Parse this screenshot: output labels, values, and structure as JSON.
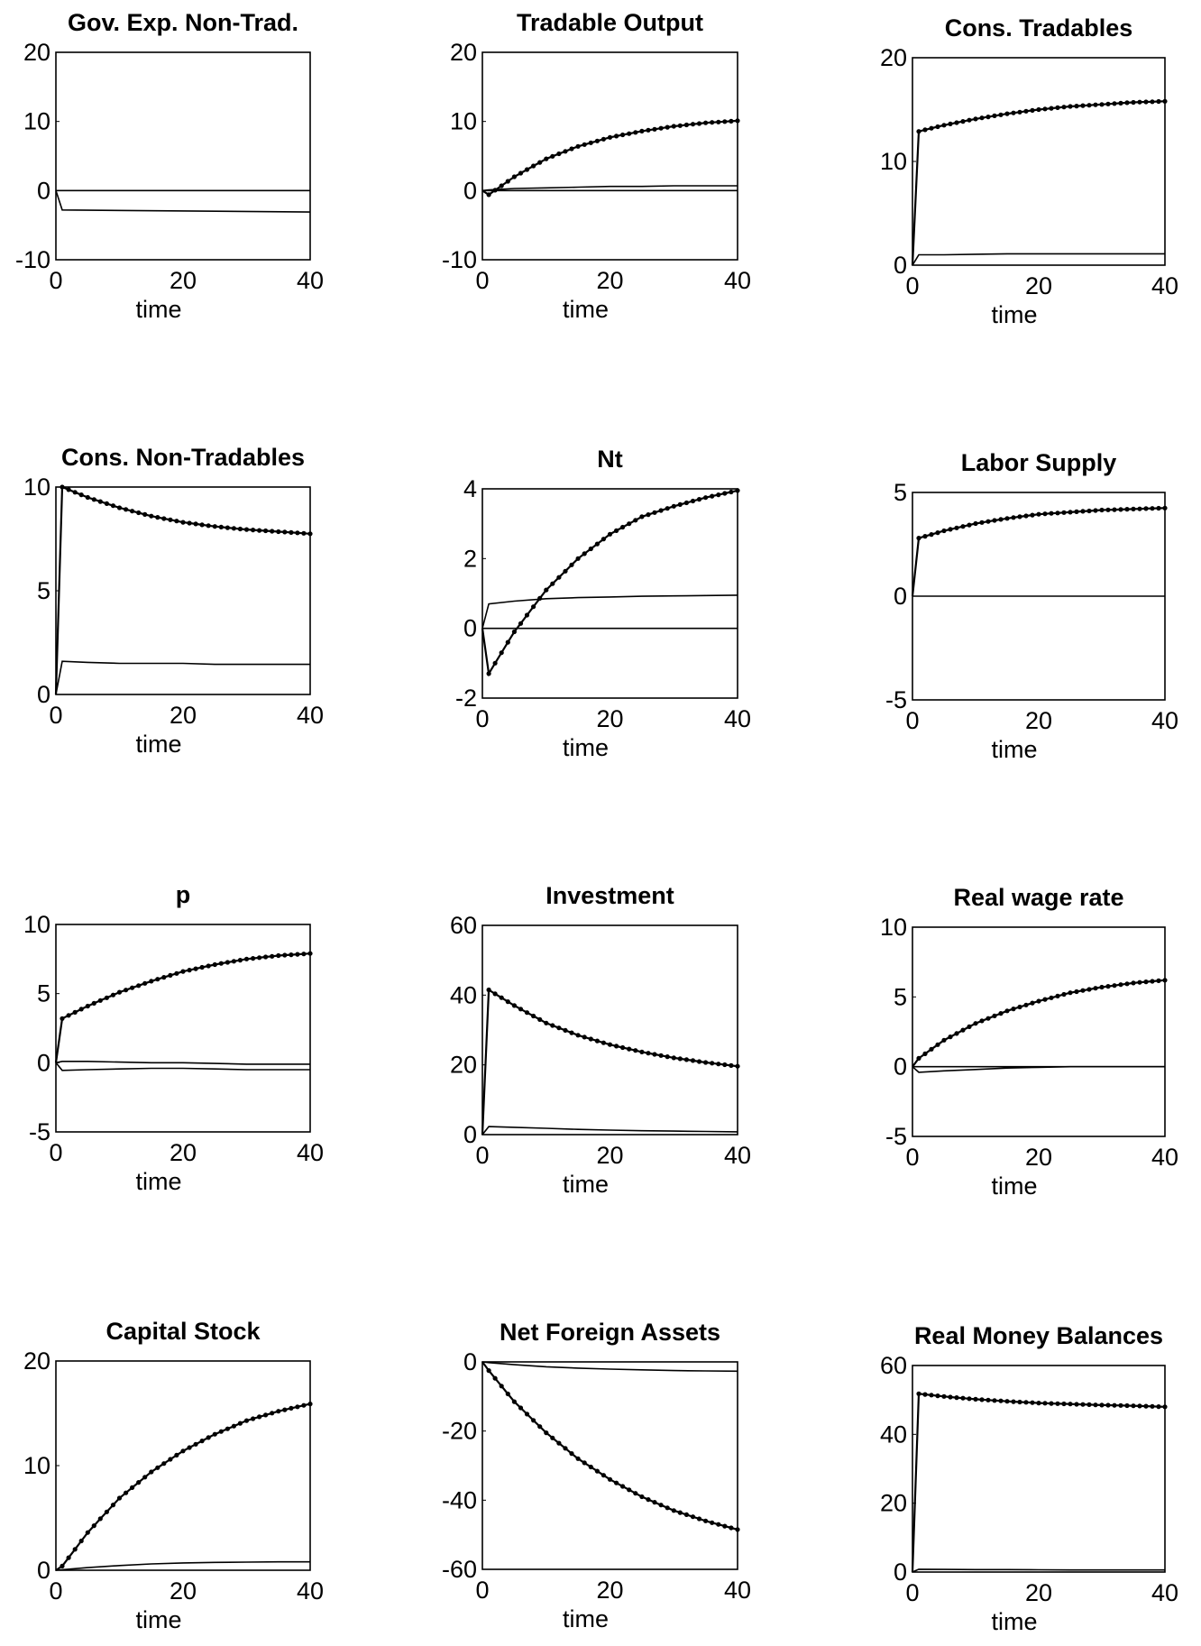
{
  "chart_data": [
    {
      "type": "line",
      "title": "Gov. Exp. Non-Trad.",
      "xlabel": "time",
      "ylim": [
        -10,
        20
      ],
      "xlim": [
        0,
        40
      ],
      "xticks": [
        "0",
        "20",
        "40"
      ],
      "yticks": [
        "-10",
        "0",
        "10",
        "20"
      ],
      "ytick_values": [
        -10,
        0,
        10,
        20
      ],
      "x": [
        0,
        1,
        40
      ],
      "series": [
        {
          "values": [
            0,
            0,
            0
          ]
        },
        {
          "values": [
            0,
            -2.8,
            -3.1
          ]
        }
      ]
    },
    {
      "type": "line",
      "title": "Tradable Output",
      "xlabel": "time",
      "ylim": [
        -10,
        20
      ],
      "xlim": [
        0,
        40
      ],
      "xticks": [
        "0",
        "20",
        "40"
      ],
      "yticks": [
        "-10",
        "0",
        "10",
        "20"
      ],
      "ytick_values": [
        -10,
        0,
        10,
        20
      ],
      "x": [
        0,
        1,
        5,
        10,
        15,
        20,
        25,
        30,
        35,
        40
      ],
      "series": [
        {
          "values": [
            0,
            -0.6,
            2.0,
            4.6,
            6.4,
            7.7,
            8.6,
            9.3,
            9.8,
            10.1
          ],
          "markers": true
        },
        {
          "values": [
            0,
            0.1,
            0.3,
            0.4,
            0.5,
            0.6,
            0.6,
            0.7,
            0.7,
            0.7
          ]
        },
        {
          "values": [
            0,
            0,
            0,
            0,
            0,
            0,
            0,
            0,
            0,
            0
          ]
        }
      ]
    },
    {
      "type": "line",
      "title": "Cons. Tradables",
      "xlabel": "time",
      "ylim": [
        0,
        20
      ],
      "xlim": [
        0,
        40
      ],
      "xticks": [
        "0",
        "20",
        "40"
      ],
      "yticks": [
        "0",
        "10",
        "20"
      ],
      "ytick_values": [
        0,
        10,
        20
      ],
      "x": [
        0,
        1,
        5,
        10,
        15,
        20,
        25,
        30,
        35,
        40
      ],
      "series": [
        {
          "values": [
            0,
            12.9,
            13.5,
            14.1,
            14.6,
            15.0,
            15.3,
            15.5,
            15.7,
            15.8
          ],
          "markers": true
        },
        {
          "values": [
            0,
            1.0,
            1.0,
            1.05,
            1.1,
            1.1,
            1.1,
            1.1,
            1.1,
            1.1
          ]
        }
      ]
    },
    {
      "type": "line",
      "title": "Cons. Non-Tradables",
      "xlabel": "time",
      "ylim": [
        0,
        10
      ],
      "xlim": [
        0,
        40
      ],
      "xticks": [
        "0",
        "20",
        "40"
      ],
      "yticks": [
        "0",
        "5",
        "10"
      ],
      "ytick_values": [
        0,
        5,
        10
      ],
      "x": [
        0,
        1,
        5,
        10,
        15,
        20,
        25,
        30,
        35,
        40
      ],
      "series": [
        {
          "values": [
            0,
            10.0,
            9.5,
            9.0,
            8.6,
            8.3,
            8.1,
            7.95,
            7.85,
            7.75
          ],
          "markers": true
        },
        {
          "values": [
            0,
            1.6,
            1.55,
            1.5,
            1.5,
            1.5,
            1.45,
            1.45,
            1.45,
            1.45
          ]
        }
      ]
    },
    {
      "type": "line",
      "title": "Nt",
      "xlabel": "time",
      "ylim": [
        -2,
        4
      ],
      "xlim": [
        0,
        40
      ],
      "xticks": [
        "0",
        "20",
        "40"
      ],
      "yticks": [
        "-2",
        "0",
        "2",
        "4"
      ],
      "ytick_values": [
        -2,
        0,
        2,
        4
      ],
      "x": [
        0,
        1,
        5,
        10,
        15,
        20,
        25,
        30,
        35,
        40
      ],
      "series": [
        {
          "values": [
            0,
            -1.3,
            -0.1,
            1.1,
            2.0,
            2.7,
            3.2,
            3.5,
            3.75,
            3.95
          ],
          "markers": true
        },
        {
          "values": [
            0,
            0.7,
            0.78,
            0.85,
            0.88,
            0.9,
            0.92,
            0.93,
            0.94,
            0.95
          ]
        },
        {
          "values": [
            0,
            0,
            0,
            0,
            0,
            0,
            0,
            0,
            0,
            0
          ]
        }
      ]
    },
    {
      "type": "line",
      "title": "Labor Supply",
      "xlabel": "time",
      "ylim": [
        -5,
        5
      ],
      "xlim": [
        0,
        40
      ],
      "xticks": [
        "0",
        "20",
        "40"
      ],
      "yticks": [
        "-5",
        "0",
        "5"
      ],
      "ytick_values": [
        -5,
        0,
        5
      ],
      "x": [
        0,
        1,
        5,
        10,
        15,
        20,
        25,
        30,
        35,
        40
      ],
      "series": [
        {
          "values": [
            0,
            2.8,
            3.15,
            3.5,
            3.75,
            3.95,
            4.05,
            4.15,
            4.2,
            4.25
          ],
          "markers": true
        },
        {
          "values": [
            0,
            0,
            0,
            0,
            0,
            0,
            0,
            0,
            0,
            0
          ]
        }
      ]
    },
    {
      "type": "line",
      "title": "p",
      "xlabel": "time",
      "ylim": [
        -5,
        10
      ],
      "xlim": [
        0,
        40
      ],
      "xticks": [
        "0",
        "20",
        "40"
      ],
      "yticks": [
        "-5",
        "0",
        "5",
        "10"
      ],
      "ytick_values": [
        -5,
        0,
        5,
        10
      ],
      "x": [
        0,
        1,
        5,
        10,
        15,
        20,
        25,
        30,
        35,
        40
      ],
      "series": [
        {
          "values": [
            0,
            3.2,
            4.1,
            5.1,
            5.9,
            6.6,
            7.1,
            7.5,
            7.75,
            7.9
          ],
          "markers": true
        },
        {
          "values": [
            0,
            0.1,
            0.1,
            0.05,
            0,
            0,
            -0.05,
            -0.1,
            -0.1,
            -0.1
          ]
        },
        {
          "values": [
            0,
            -0.55,
            -0.5,
            -0.45,
            -0.4,
            -0.4,
            -0.45,
            -0.5,
            -0.5,
            -0.5
          ]
        }
      ]
    },
    {
      "type": "line",
      "title": "Investment",
      "xlabel": "time",
      "ylim": [
        0,
        60
      ],
      "xlim": [
        0,
        40
      ],
      "xticks": [
        "0",
        "20",
        "40"
      ],
      "yticks": [
        "0",
        "20",
        "40",
        "60"
      ],
      "ytick_values": [
        0,
        20,
        40,
        60
      ],
      "x": [
        0,
        1,
        5,
        10,
        15,
        20,
        25,
        30,
        35,
        40
      ],
      "series": [
        {
          "values": [
            0,
            41.5,
            37,
            32,
            28.5,
            25.8,
            23.7,
            22,
            20.7,
            19.6
          ],
          "markers": true
        },
        {
          "values": [
            0,
            2.3,
            2.1,
            1.8,
            1.5,
            1.3,
            1.1,
            1.0,
            0.9,
            0.8
          ]
        }
      ]
    },
    {
      "type": "line",
      "title": "Real wage rate",
      "xlabel": "time",
      "ylim": [
        -5,
        10
      ],
      "xlim": [
        0,
        40
      ],
      "xticks": [
        "0",
        "20",
        "40"
      ],
      "yticks": [
        "-5",
        "0",
        "5",
        "10"
      ],
      "ytick_values": [
        -5,
        0,
        5,
        10
      ],
      "x": [
        0,
        1,
        5,
        10,
        15,
        20,
        25,
        30,
        35,
        40
      ],
      "series": [
        {
          "values": [
            0,
            0.6,
            1.9,
            3.1,
            4.0,
            4.7,
            5.3,
            5.7,
            6.0,
            6.2
          ],
          "markers": true
        },
        {
          "values": [
            0,
            -0.4,
            -0.3,
            -0.2,
            -0.1,
            -0.05,
            0,
            0,
            0,
            0
          ]
        },
        {
          "values": [
            0,
            0,
            0,
            0,
            0,
            0,
            0,
            0,
            0,
            0
          ]
        }
      ]
    },
    {
      "type": "line",
      "title": "Capital Stock",
      "xlabel": "time",
      "ylim": [
        0,
        20
      ],
      "xlim": [
        0,
        40
      ],
      "xticks": [
        "0",
        "20",
        "40"
      ],
      "yticks": [
        "0",
        "10",
        "20"
      ],
      "ytick_values": [
        0,
        10,
        20
      ],
      "x": [
        0,
        1,
        5,
        10,
        15,
        20,
        25,
        30,
        35,
        40
      ],
      "series": [
        {
          "values": [
            0,
            0.4,
            3.6,
            6.9,
            9.4,
            11.4,
            13.0,
            14.3,
            15.2,
            15.9
          ],
          "markers": true
        },
        {
          "values": [
            0,
            0.05,
            0.25,
            0.45,
            0.6,
            0.7,
            0.75,
            0.78,
            0.8,
            0.8
          ]
        }
      ]
    },
    {
      "type": "line",
      "title": "Net Foreign Assets",
      "xlabel": "time",
      "ylim": [
        -60,
        0
      ],
      "xlim": [
        0,
        40
      ],
      "xticks": [
        "0",
        "20",
        "40"
      ],
      "yticks": [
        "-60",
        "-40",
        "-20",
        "0"
      ],
      "ytick_values": [
        -60,
        -40,
        -20,
        0
      ],
      "x": [
        0,
        1,
        5,
        10,
        15,
        20,
        25,
        30,
        35,
        40
      ],
      "series": [
        {
          "values": [
            0,
            -2.5,
            -11.5,
            -20.5,
            -28,
            -34,
            -39,
            -43,
            -46,
            -48.5
          ],
          "markers": true
        },
        {
          "values": [
            0,
            -0.2,
            -0.8,
            -1.4,
            -1.8,
            -2.1,
            -2.3,
            -2.5,
            -2.6,
            -2.7
          ]
        }
      ]
    },
    {
      "type": "line",
      "title": "Real Money Balances",
      "xlabel": "time",
      "ylim": [
        0,
        60
      ],
      "xlim": [
        0,
        40
      ],
      "xticks": [
        "0",
        "20",
        "40"
      ],
      "yticks": [
        "0",
        "20",
        "40",
        "60"
      ],
      "ytick_values": [
        0,
        20,
        40,
        60
      ],
      "x": [
        0,
        1,
        5,
        10,
        15,
        20,
        25,
        30,
        35,
        40
      ],
      "series": [
        {
          "values": [
            0,
            51.8,
            51.0,
            50.2,
            49.6,
            49.1,
            48.8,
            48.5,
            48.3,
            48.0
          ],
          "markers": true
        },
        {
          "values": [
            0,
            0.8,
            0.75,
            0.7,
            0.7,
            0.65,
            0.6,
            0.6,
            0.6,
            0.6
          ]
        }
      ]
    }
  ]
}
